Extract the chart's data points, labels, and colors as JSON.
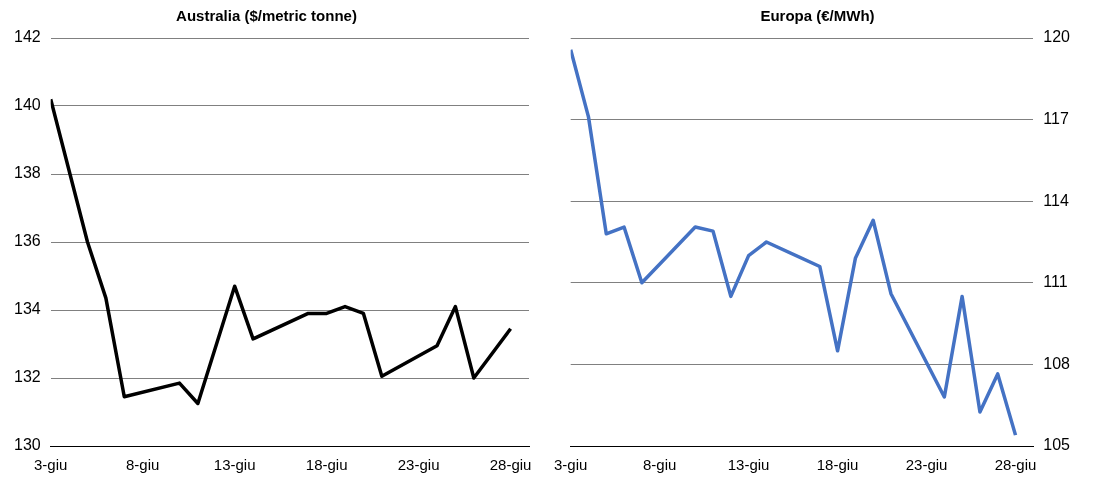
{
  "chart_data": [
    {
      "type": "line",
      "title": "Australia ($/metric tonne)",
      "x": [
        "--06-03",
        "--06-05",
        "--06-06",
        "--06-07",
        "--06-10",
        "--06-11",
        "--06-13",
        "--06-14",
        "--06-17",
        "--06-18",
        "--06-19",
        "--06-20",
        "--06-21",
        "--06-24",
        "--06-25",
        "--06-26",
        "--06-28"
      ],
      "series": [
        {
          "color": "#000000",
          "values": [
            140.2,
            136.0,
            134.35,
            131.45,
            131.85,
            131.25,
            134.7,
            133.15,
            133.9,
            133.9,
            134.1,
            133.9,
            132.05,
            132.95,
            134.1,
            132.0,
            133.45
          ]
        }
      ],
      "xlim": [
        "--06-03",
        "--06-29"
      ],
      "xticks": [
        {
          "value": "--06-03",
          "label": "3-giu"
        },
        {
          "value": "--06-08",
          "label": "8-giu"
        },
        {
          "value": "--06-13",
          "label": "13-giu"
        },
        {
          "value": "--06-18",
          "label": "18-giu"
        },
        {
          "value": "--06-23",
          "label": "23-giu"
        },
        {
          "value": "--06-28",
          "label": "28-giu"
        }
      ],
      "ylim": [
        130,
        142
      ],
      "yticks": [
        130,
        132,
        134,
        136,
        138,
        140,
        142
      ],
      "grid": "y",
      "marker": "none"
    },
    {
      "type": "line",
      "title": "Europa (€/MWh)",
      "x": [
        "--06-03",
        "--06-04",
        "--06-05",
        "--06-06",
        "--06-07",
        "--06-10",
        "--06-11",
        "--06-12",
        "--06-13",
        "--06-14",
        "--06-17",
        "--06-18",
        "--06-19",
        "--06-20",
        "--06-21",
        "--06-24",
        "--06-25",
        "--06-26",
        "--06-27",
        "--06-28"
      ],
      "series": [
        {
          "color": "#4472c4",
          "axis": "y2",
          "values": [
            119.57,
            117.1,
            112.8,
            113.05,
            111.0,
            113.05,
            112.9,
            110.5,
            112.0,
            112.5,
            111.6,
            108.5,
            111.9,
            113.3,
            110.6,
            106.8,
            110.5,
            106.25,
            107.65,
            105.4
          ]
        }
      ],
      "xlim": [
        "--06-03",
        "--06-29"
      ],
      "xticks": [
        {
          "value": "--06-03",
          "label": "3-giu"
        },
        {
          "value": "--06-08",
          "label": "8-giu"
        },
        {
          "value": "--06-13",
          "label": "13-giu"
        },
        {
          "value": "--06-18",
          "label": "18-giu"
        },
        {
          "value": "--06-23",
          "label": "23-giu"
        },
        {
          "value": "--06-28",
          "label": "28-giu"
        }
      ],
      "y2lim": [
        105,
        120
      ],
      "y2ticks": [
        105,
        108,
        111,
        114,
        117,
        120
      ],
      "grid": "y",
      "marker": "none"
    }
  ]
}
